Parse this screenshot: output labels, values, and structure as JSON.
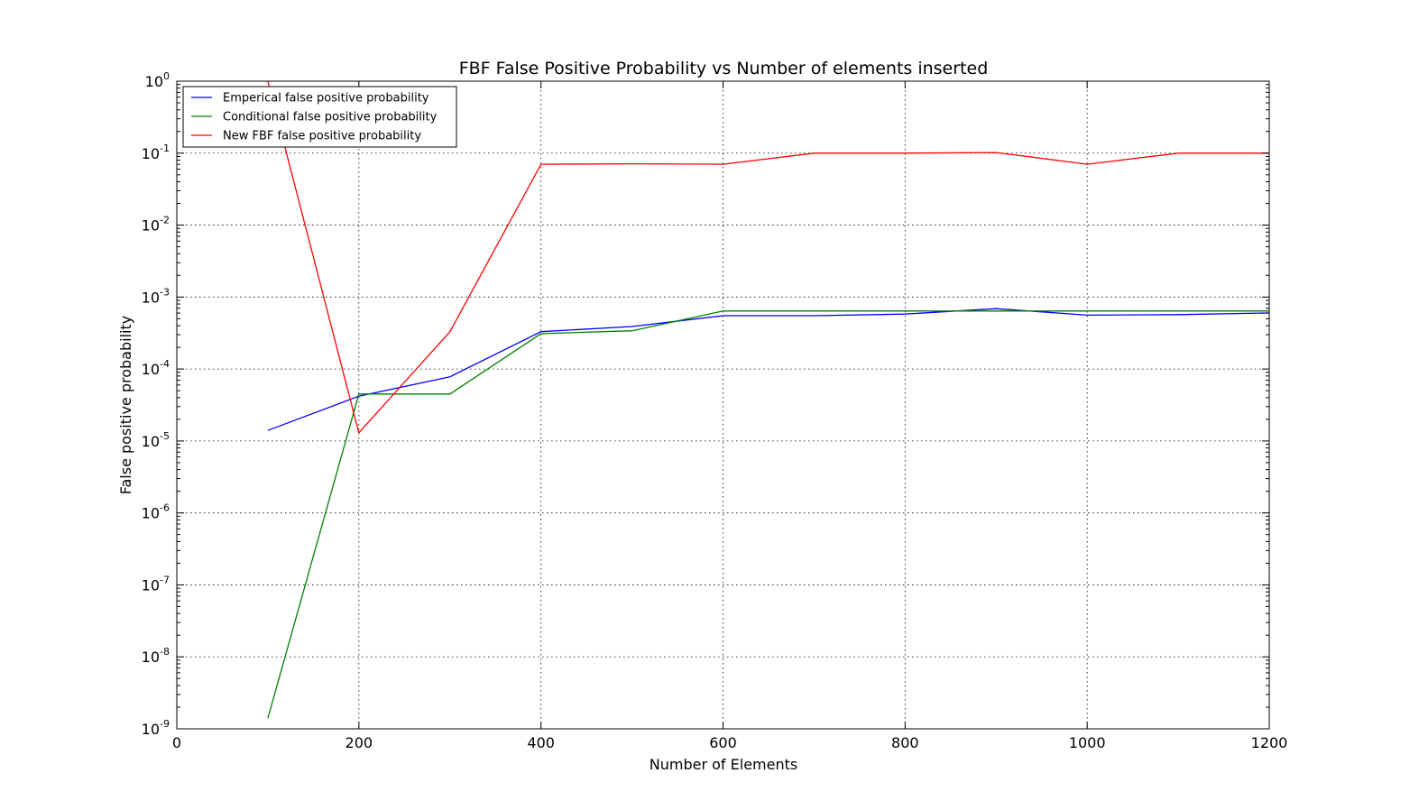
{
  "chart_data": {
    "type": "line",
    "title": "FBF False Positive Probability vs Number of elements inserted",
    "xlabel": "Number of Elements",
    "ylabel": "False positive probability",
    "xlim": [
      0,
      1200
    ],
    "ylim": [
      1e-09,
      1
    ],
    "yscale": "log",
    "grid": true,
    "legend_position": "top-left",
    "x_ticks": [
      0,
      200,
      400,
      600,
      800,
      1000,
      1200
    ],
    "y_tick_exponents": [
      0,
      -1,
      -2,
      -3,
      -4,
      -5,
      -6,
      -7,
      -8,
      -9
    ],
    "x": [
      100,
      200,
      300,
      400,
      500,
      600,
      700,
      800,
      900,
      1000,
      1100,
      1200
    ],
    "series": [
      {
        "name": "Emperical false positive probability",
        "color": "#0000ff",
        "values": [
          1.4e-05,
          4.2e-05,
          7.8e-05,
          0.00033,
          0.00039,
          0.00055,
          0.00055,
          0.00058,
          0.00069,
          0.00056,
          0.00057,
          0.0006
        ]
      },
      {
        "name": "Conditional false positive probability",
        "color": "#008000",
        "values": [
          1.4e-09,
          4.5e-05,
          4.5e-05,
          0.00031,
          0.00034,
          0.00064,
          0.00064,
          0.00064,
          0.00064,
          0.00064,
          0.00064,
          0.00064
        ]
      },
      {
        "name": "New FBF false positive probability",
        "color": "#ff0000",
        "values": [
          1.0,
          1.3e-05,
          0.00033,
          0.07,
          0.071,
          0.07,
          0.1,
          0.1,
          0.102,
          0.07,
          0.1,
          0.1
        ]
      }
    ]
  }
}
